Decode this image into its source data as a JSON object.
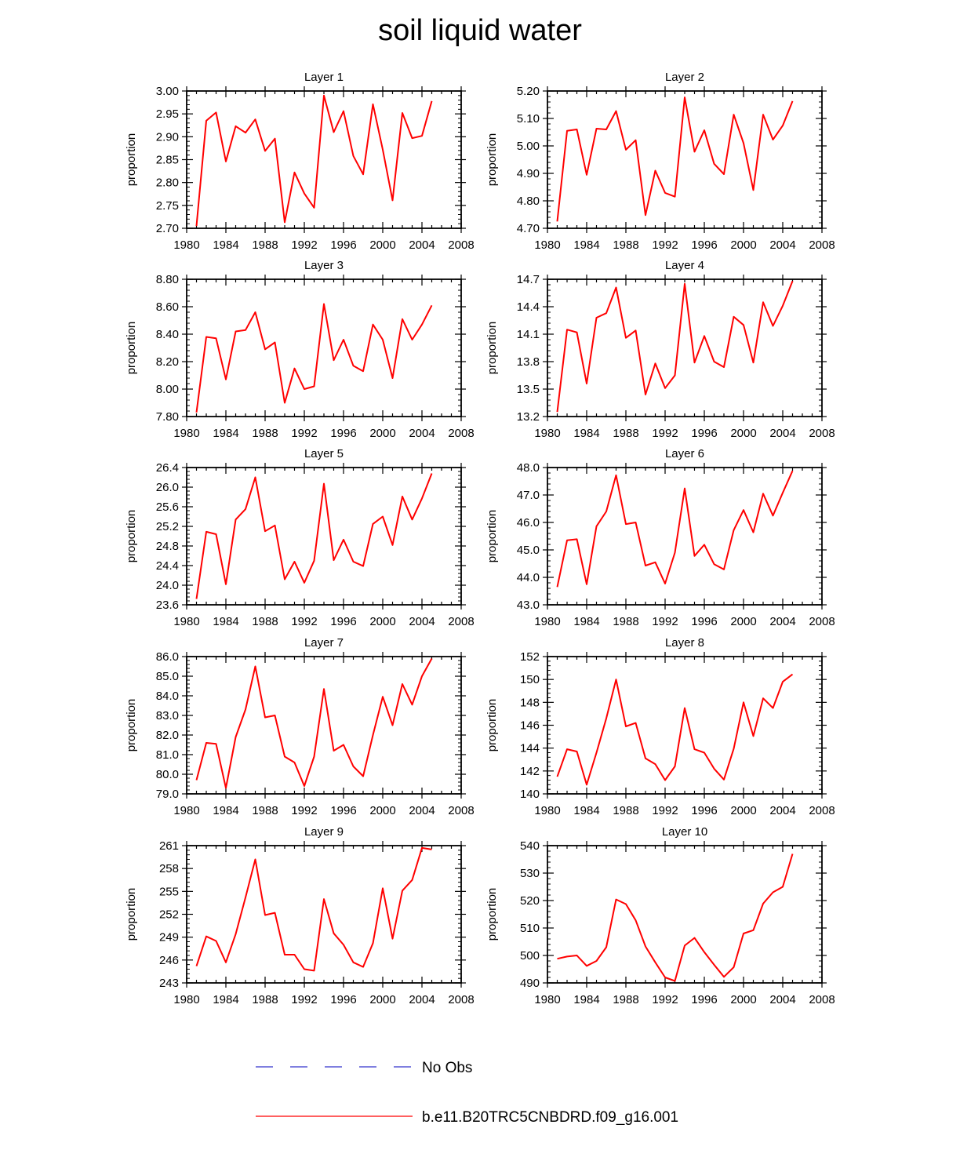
{
  "title": "soil liquid water",
  "chart_data": [
    {
      "type": "line",
      "title": "Layer 1",
      "ylabel": "proportion",
      "xlim": [
        1980,
        2008
      ],
      "xticks": [
        1980,
        1984,
        1988,
        1992,
        1996,
        2000,
        2004,
        2008
      ],
      "ylim": [
        2.7,
        3.0
      ],
      "ytick_labels": [
        "2.70",
        "2.75",
        "2.80",
        "2.85",
        "2.90",
        "2.95",
        "3.00"
      ],
      "x": [
        1981,
        1982,
        1983,
        1984,
        1985,
        1986,
        1987,
        1988,
        1989,
        1990,
        1991,
        1992,
        1993,
        1994,
        1995,
        1996,
        1997,
        1998,
        1999,
        2000,
        2001,
        2002,
        2003,
        2004,
        2005
      ],
      "series": [
        {
          "name": "b.e11.B20TRC5CNBDRD.f09_g16.001",
          "color": "#ff0000",
          "values": [
            2.705,
            2.935,
            2.953,
            2.846,
            2.923,
            2.909,
            2.938,
            2.869,
            2.896,
            2.713,
            2.822,
            2.776,
            2.745,
            2.99,
            2.91,
            2.956,
            2.858,
            2.818,
            2.971,
            2.872,
            2.761,
            2.952,
            2.897,
            2.902,
            2.978
          ]
        }
      ]
    },
    {
      "type": "line",
      "title": "Layer 2",
      "ylabel": "proportion",
      "xlim": [
        1980,
        2008
      ],
      "xticks": [
        1980,
        1984,
        1988,
        1992,
        1996,
        2000,
        2004,
        2008
      ],
      "ylim": [
        4.7,
        5.2
      ],
      "ytick_labels": [
        "4.70",
        "4.80",
        "4.90",
        "5.00",
        "5.10",
        "5.20"
      ],
      "x": [
        1981,
        1982,
        1983,
        1984,
        1985,
        1986,
        1987,
        1988,
        1989,
        1990,
        1991,
        1992,
        1993,
        1994,
        1995,
        1996,
        1997,
        1998,
        1999,
        2000,
        2001,
        2002,
        2003,
        2004,
        2005
      ],
      "series": [
        {
          "name": "b.e11.B20TRC5CNBDRD.f09_g16.001",
          "color": "#ff0000",
          "values": [
            4.725,
            5.055,
            5.06,
            4.895,
            5.063,
            5.06,
            5.127,
            4.986,
            5.021,
            4.748,
            4.91,
            4.829,
            4.815,
            5.177,
            4.979,
            5.057,
            4.935,
            4.897,
            5.114,
            5.01,
            4.839,
            5.114,
            5.023,
            5.074,
            5.163
          ]
        }
      ]
    },
    {
      "type": "line",
      "title": "Layer 3",
      "ylabel": "proportion",
      "xlim": [
        1980,
        2008
      ],
      "xticks": [
        1980,
        1984,
        1988,
        1992,
        1996,
        2000,
        2004,
        2008
      ],
      "ylim": [
        7.8,
        8.8
      ],
      "ytick_labels": [
        "7.80",
        "8.00",
        "8.20",
        "8.40",
        "8.60",
        "8.80"
      ],
      "x": [
        1981,
        1982,
        1983,
        1984,
        1985,
        1986,
        1987,
        1988,
        1989,
        1990,
        1991,
        1992,
        1993,
        1994,
        1995,
        1996,
        1997,
        1998,
        1999,
        2000,
        2001,
        2002,
        2003,
        2004,
        2005
      ],
      "series": [
        {
          "name": "b.e11.B20TRC5CNBDRD.f09_g16.001",
          "color": "#ff0000",
          "values": [
            7.83,
            8.38,
            8.37,
            8.07,
            8.42,
            8.43,
            8.56,
            8.29,
            8.34,
            7.9,
            8.15,
            8.0,
            8.02,
            8.62,
            8.21,
            8.36,
            8.17,
            8.13,
            8.47,
            8.36,
            8.08,
            8.51,
            8.36,
            8.47,
            8.61
          ]
        }
      ]
    },
    {
      "type": "line",
      "title": "Layer 4",
      "ylabel": "proportion",
      "xlim": [
        1980,
        2008
      ],
      "xticks": [
        1980,
        1984,
        1988,
        1992,
        1996,
        2000,
        2004,
        2008
      ],
      "ylim": [
        13.2,
        14.7
      ],
      "ytick_labels": [
        "13.2",
        "13.5",
        "13.8",
        "14.1",
        "14.4",
        "14.7"
      ],
      "x": [
        1981,
        1982,
        1983,
        1984,
        1985,
        1986,
        1987,
        1988,
        1989,
        1990,
        1991,
        1992,
        1993,
        1994,
        1995,
        1996,
        1997,
        1998,
        1999,
        2000,
        2001,
        2002,
        2003,
        2004,
        2005
      ],
      "series": [
        {
          "name": "b.e11.B20TRC5CNBDRD.f09_g16.001",
          "color": "#ff0000",
          "values": [
            13.25,
            14.15,
            14.12,
            13.56,
            14.28,
            14.33,
            14.61,
            14.06,
            14.14,
            13.44,
            13.78,
            13.51,
            13.65,
            14.65,
            13.79,
            14.08,
            13.8,
            13.74,
            14.29,
            14.2,
            13.79,
            14.45,
            14.19,
            14.41,
            14.68
          ]
        }
      ]
    },
    {
      "type": "line",
      "title": "Layer 5",
      "ylabel": "proportion",
      "xlim": [
        1980,
        2008
      ],
      "xticks": [
        1980,
        1984,
        1988,
        1992,
        1996,
        2000,
        2004,
        2008
      ],
      "ylim": [
        23.6,
        26.4
      ],
      "ytick_labels": [
        "23.6",
        "24.0",
        "24.4",
        "24.8",
        "25.2",
        "25.6",
        "26.0",
        "26.4"
      ],
      "x": [
        1981,
        1982,
        1983,
        1984,
        1985,
        1986,
        1987,
        1988,
        1989,
        1990,
        1991,
        1992,
        1993,
        1994,
        1995,
        1996,
        1997,
        1998,
        1999,
        2000,
        2001,
        2002,
        2003,
        2004,
        2005
      ],
      "series": [
        {
          "name": "b.e11.B20TRC5CNBDRD.f09_g16.001",
          "color": "#ff0000",
          "values": [
            23.72,
            25.09,
            25.04,
            24.02,
            25.34,
            25.55,
            26.2,
            25.1,
            25.22,
            24.12,
            24.48,
            24.05,
            24.5,
            26.07,
            24.51,
            24.93,
            24.48,
            24.39,
            25.25,
            25.4,
            24.82,
            25.81,
            25.34,
            25.77,
            26.28
          ]
        }
      ]
    },
    {
      "type": "line",
      "title": "Layer 6",
      "ylabel": "proportion",
      "xlim": [
        1980,
        2008
      ],
      "xticks": [
        1980,
        1984,
        1988,
        1992,
        1996,
        2000,
        2004,
        2008
      ],
      "ylim": [
        43.0,
        48.0
      ],
      "ytick_labels": [
        "43.0",
        "44.0",
        "45.0",
        "46.0",
        "47.0",
        "48.0"
      ],
      "x": [
        1981,
        1982,
        1983,
        1984,
        1985,
        1986,
        1987,
        1988,
        1989,
        1990,
        1991,
        1992,
        1993,
        1994,
        1995,
        1996,
        1997,
        1998,
        1999,
        2000,
        2001,
        2002,
        2003,
        2004,
        2005
      ],
      "series": [
        {
          "name": "b.e11.B20TRC5CNBDRD.f09_g16.001",
          "color": "#ff0000",
          "values": [
            43.65,
            45.35,
            45.39,
            43.75,
            45.86,
            46.4,
            47.72,
            45.94,
            46.0,
            44.43,
            44.55,
            43.77,
            44.9,
            47.24,
            44.78,
            45.19,
            44.48,
            44.29,
            45.72,
            46.45,
            45.64,
            47.05,
            46.25,
            47.08,
            47.88
          ]
        }
      ]
    },
    {
      "type": "line",
      "title": "Layer 7",
      "ylabel": "proportion",
      "xlim": [
        1980,
        2008
      ],
      "xticks": [
        1980,
        1984,
        1988,
        1992,
        1996,
        2000,
        2004,
        2008
      ],
      "ylim": [
        79.0,
        86.0
      ],
      "ytick_labels": [
        "79.0",
        "80.0",
        "81.0",
        "82.0",
        "83.0",
        "84.0",
        "85.0",
        "86.0"
      ],
      "x": [
        1981,
        1982,
        1983,
        1984,
        1985,
        1986,
        1987,
        1988,
        1989,
        1990,
        1991,
        1992,
        1993,
        1994,
        1995,
        1996,
        1997,
        1998,
        1999,
        2000,
        2001,
        2002,
        2003,
        2004,
        2005
      ],
      "series": [
        {
          "name": "b.e11.B20TRC5CNBDRD.f09_g16.001",
          "color": "#ff0000",
          "values": [
            79.7,
            81.6,
            81.55,
            79.3,
            81.9,
            83.3,
            85.5,
            82.9,
            83.0,
            80.9,
            80.6,
            79.4,
            80.9,
            84.35,
            81.2,
            81.5,
            80.4,
            79.9,
            82.0,
            83.95,
            82.5,
            84.6,
            83.55,
            85.0,
            85.9
          ]
        }
      ]
    },
    {
      "type": "line",
      "title": "Layer 8",
      "ylabel": "proportion",
      "xlim": [
        1980,
        2008
      ],
      "xticks": [
        1980,
        1984,
        1988,
        1992,
        1996,
        2000,
        2004,
        2008
      ],
      "ylim": [
        140,
        152
      ],
      "ytick_labels": [
        "140",
        "142",
        "144",
        "146",
        "148",
        "150",
        "152"
      ],
      "x": [
        1981,
        1982,
        1983,
        1984,
        1985,
        1986,
        1987,
        1988,
        1989,
        1990,
        1991,
        1992,
        1993,
        1994,
        1995,
        1996,
        1997,
        1998,
        1999,
        2000,
        2001,
        2002,
        2003,
        2004,
        2005
      ],
      "series": [
        {
          "name": "b.e11.B20TRC5CNBDRD.f09_g16.001",
          "color": "#ff0000",
          "values": [
            141.5,
            143.9,
            143.7,
            140.8,
            143.6,
            146.6,
            150.0,
            145.9,
            146.2,
            143.1,
            142.6,
            141.2,
            142.4,
            147.5,
            143.9,
            143.6,
            142.2,
            141.25,
            143.95,
            148.0,
            145.05,
            148.35,
            147.5,
            149.8,
            150.45
          ]
        }
      ]
    },
    {
      "type": "line",
      "title": "Layer 9",
      "ylabel": "proportion",
      "xlim": [
        1980,
        2008
      ],
      "xticks": [
        1980,
        1984,
        1988,
        1992,
        1996,
        2000,
        2004,
        2008
      ],
      "ylim": [
        243,
        261
      ],
      "ytick_labels": [
        "243",
        "246",
        "249",
        "252",
        "255",
        "258",
        "261"
      ],
      "x": [
        1981,
        1982,
        1983,
        1984,
        1985,
        1986,
        1987,
        1988,
        1989,
        1990,
        1991,
        1992,
        1993,
        1994,
        1995,
        1996,
        1997,
        1998,
        1999,
        2000,
        2001,
        2002,
        2003,
        2004,
        2005
      ],
      "series": [
        {
          "name": "b.e11.B20TRC5CNBDRD.f09_g16.001",
          "color": "#ff0000",
          "values": [
            245.2,
            249.1,
            248.5,
            245.7,
            249.4,
            254.2,
            259.2,
            251.9,
            252.2,
            246.7,
            246.7,
            244.8,
            244.6,
            254.0,
            249.5,
            248.0,
            245.7,
            245.1,
            248.2,
            255.4,
            248.8,
            255.1,
            256.5,
            260.7,
            260.5
          ]
        }
      ]
    },
    {
      "type": "line",
      "title": "Layer 10",
      "ylabel": "proportion",
      "xlim": [
        1980,
        2008
      ],
      "xticks": [
        1980,
        1984,
        1988,
        1992,
        1996,
        2000,
        2004,
        2008
      ],
      "ylim": [
        490,
        540
      ],
      "ytick_labels": [
        "490",
        "500",
        "510",
        "520",
        "530",
        "540"
      ],
      "x": [
        1981,
        1982,
        1983,
        1984,
        1985,
        1986,
        1987,
        1988,
        1989,
        1990,
        1991,
        1992,
        1993,
        1994,
        1995,
        1996,
        1997,
        1998,
        1999,
        2000,
        2001,
        2002,
        2003,
        2004,
        2005
      ],
      "series": [
        {
          "name": "b.e11.B20TRC5CNBDRD.f09_g16.001",
          "color": "#ff0000",
          "values": [
            498.8,
            499.6,
            500.0,
            496.2,
            498.0,
            503.0,
            520.4,
            518.7,
            512.8,
            503.3,
            497.5,
            492.0,
            490.7,
            503.6,
            506.4,
            501.2,
            496.6,
            492.2,
            495.7,
            508.0,
            509.2,
            518.9,
            523.0,
            525.0,
            537.0
          ]
        }
      ]
    }
  ],
  "legend": [
    {
      "label": "No Obs",
      "color": "#3333cc",
      "style": "dashed"
    },
    {
      "label": "b.e11.B20TRC5CNBDRD.f09_g16.001",
      "color": "#ff0000",
      "style": "solid"
    }
  ]
}
